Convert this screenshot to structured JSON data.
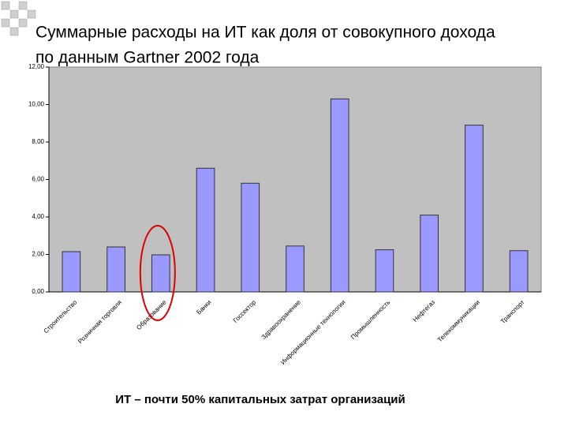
{
  "chart_data": {
    "type": "bar",
    "title": [
      "Суммарные расходы на ИТ как доля от совокупного дохода",
      "по данным Gartner 2002 года"
    ],
    "categories": [
      "Строительство",
      "Розничная торговля",
      "Образование",
      "Банки",
      "Госсектор",
      "Здравоохранение",
      "Информационные технологии",
      "Промышленность",
      "Нефтегаз",
      "Телекоммуникации",
      "Транспорт"
    ],
    "values": [
      2.15,
      2.4,
      1.98,
      6.6,
      5.8,
      2.45,
      10.3,
      2.25,
      4.1,
      8.9,
      2.2
    ],
    "color": "#9999ff",
    "ylim": [
      0,
      12
    ],
    "yticks": [
      {
        "value": 0,
        "label": "0,00"
      },
      {
        "value": 2,
        "label": "2,00"
      },
      {
        "value": 4,
        "label": "4,00"
      },
      {
        "value": 6,
        "label": "6,00"
      },
      {
        "value": 8,
        "label": "8,00"
      },
      {
        "value": 10,
        "label": "10,00"
      },
      {
        "value": 12,
        "label": "12,00"
      }
    ],
    "grid": false,
    "annotation": "ИТ – почти 50% капитальных затрат организаций"
  }
}
